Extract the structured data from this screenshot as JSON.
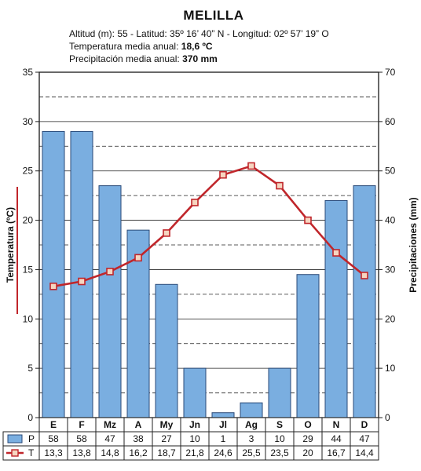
{
  "header": {
    "title": "MELILLA",
    "location_line": "Altitud (m): 55 - Latitud: 35º 16’ 40” N - Longitud: 02º 57’ 19” O",
    "temp_label": "Temperatura media anual:",
    "temp_value": "18,6 ºC",
    "precip_label": "Precipitación media anual:",
    "precip_value": "370 mm"
  },
  "colors": {
    "bar_fill": "#7aaee0",
    "bar_stroke": "#2a4a78",
    "line": "#c0262b",
    "marker_fill": "#f6d5c0",
    "plot_bg": "#ffffff",
    "grid": "#222222",
    "left_axis_accent": "#c0262b"
  },
  "chart_data": {
    "type": "bar+line",
    "categories": [
      "E",
      "F",
      "Mz",
      "A",
      "My",
      "Jn",
      "Jl",
      "Ag",
      "S",
      "O",
      "N",
      "D"
    ],
    "series": [
      {
        "name": "P",
        "type": "bar",
        "axis": "right",
        "values": [
          58,
          58,
          47,
          38,
          27,
          10,
          1,
          3,
          10,
          29,
          44,
          47
        ],
        "display": [
          "58",
          "58",
          "47",
          "38",
          "27",
          "10",
          "1",
          "3",
          "10",
          "29",
          "44",
          "47"
        ]
      },
      {
        "name": "T",
        "type": "line",
        "axis": "left",
        "values": [
          13.3,
          13.8,
          14.8,
          16.2,
          18.7,
          21.8,
          24.6,
          25.5,
          23.5,
          20,
          16.7,
          14.4
        ],
        "display": [
          "13,3",
          "13,8",
          "14,8",
          "16,2",
          "18,7",
          "21,8",
          "24,6",
          "25,5",
          "23,5",
          "20",
          "16,7",
          "14,4"
        ]
      }
    ],
    "ylabel_left": "Temperatura (ºC)",
    "ylabel_right": "Precipitaciones (mm)",
    "ylim_left": [
      0,
      35
    ],
    "ylim_right": [
      0,
      70
    ],
    "yticks_left": [
      "0",
      "5",
      "10",
      "15",
      "20",
      "25",
      "30",
      "35"
    ],
    "yticks_right": [
      "0",
      "10",
      "20",
      "30",
      "40",
      "50",
      "60",
      "70"
    ],
    "grid": true,
    "legend": "table-bottom"
  }
}
